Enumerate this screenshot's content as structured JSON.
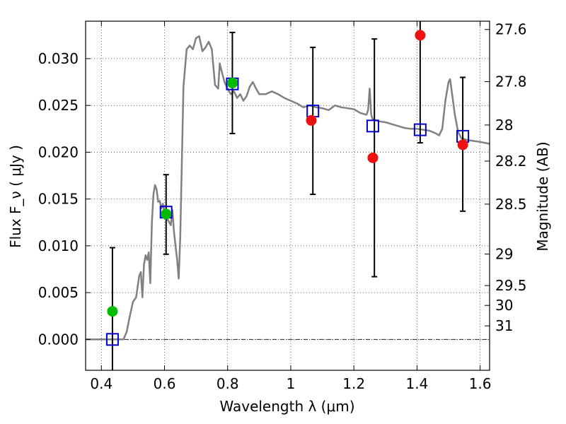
{
  "chart_data": {
    "type": "scatter",
    "title": "",
    "xlabel": "Wavelength  λ (μm)",
    "ylabel_left": "Flux  F_ν  ( μJy )",
    "ylabel_right": "Magnitude (AB)",
    "xlim": [
      0.35,
      1.63
    ],
    "ylim": [
      -0.0033,
      0.034
    ],
    "grid": true,
    "legend": "none",
    "x_ticks": [
      0.4,
      0.6,
      0.8,
      1.0,
      1.2,
      1.4,
      1.6
    ],
    "x_tick_labels": [
      "0.4",
      "0.6",
      "0.8",
      "1",
      "1.2",
      "1.4",
      "1.6"
    ],
    "y_ticks": [
      0.0,
      0.005,
      0.01,
      0.015,
      0.02,
      0.025,
      0.03
    ],
    "y_tick_labels": [
      "0.000",
      "0.005",
      "0.010",
      "0.015",
      "0.020",
      "0.025",
      "0.030"
    ],
    "mag_ticks": [
      "27.6",
      "27.8",
      "28",
      "28.2",
      "28.5",
      "29",
      "29.5",
      "30",
      "31"
    ],
    "colors": {
      "spectrum": "#808080",
      "detection": "#00bb00",
      "nondetection": "#ee1111",
      "model_box": "#0000cc",
      "errorbar": "#000000"
    },
    "spectrum": [
      [
        0.35,
        0.0
      ],
      [
        0.47,
        0.0
      ],
      [
        0.48,
        0.0008
      ],
      [
        0.49,
        0.0025
      ],
      [
        0.5,
        0.004
      ],
      [
        0.51,
        0.0045
      ],
      [
        0.52,
        0.0068
      ],
      [
        0.525,
        0.0072
      ],
      [
        0.53,
        0.0045
      ],
      [
        0.535,
        0.008
      ],
      [
        0.54,
        0.009
      ],
      [
        0.545,
        0.0085
      ],
      [
        0.55,
        0.0093
      ],
      [
        0.555,
        0.006
      ],
      [
        0.56,
        0.0125
      ],
      [
        0.565,
        0.0155
      ],
      [
        0.57,
        0.0165
      ],
      [
        0.575,
        0.016
      ],
      [
        0.58,
        0.0147
      ],
      [
        0.585,
        0.0148
      ],
      [
        0.59,
        0.014
      ],
      [
        0.595,
        0.0145
      ],
      [
        0.6,
        0.0135
      ],
      [
        0.605,
        0.0132
      ],
      [
        0.61,
        0.0128
      ],
      [
        0.615,
        0.0125
      ],
      [
        0.62,
        0.0122
      ],
      [
        0.625,
        0.0138
      ],
      [
        0.63,
        0.0115
      ],
      [
        0.635,
        0.01
      ],
      [
        0.64,
        0.0085
      ],
      [
        0.645,
        0.0065
      ],
      [
        0.65,
        0.011
      ],
      [
        0.66,
        0.027
      ],
      [
        0.67,
        0.031
      ],
      [
        0.68,
        0.0314
      ],
      [
        0.69,
        0.031
      ],
      [
        0.7,
        0.0322
      ],
      [
        0.71,
        0.0324
      ],
      [
        0.72,
        0.0308
      ],
      [
        0.73,
        0.0312
      ],
      [
        0.74,
        0.0318
      ],
      [
        0.75,
        0.031
      ],
      [
        0.76,
        0.0272
      ],
      [
        0.77,
        0.0268
      ],
      [
        0.775,
        0.0295
      ],
      [
        0.78,
        0.0288
      ],
      [
        0.79,
        0.0275
      ],
      [
        0.8,
        0.0268
      ],
      [
        0.81,
        0.0262
      ],
      [
        0.82,
        0.0265
      ],
      [
        0.83,
        0.0258
      ],
      [
        0.84,
        0.0262
      ],
      [
        0.85,
        0.0255
      ],
      [
        0.86,
        0.026
      ],
      [
        0.87,
        0.027
      ],
      [
        0.88,
        0.0275
      ],
      [
        0.89,
        0.0268
      ],
      [
        0.9,
        0.0262
      ],
      [
        0.92,
        0.0262
      ],
      [
        0.94,
        0.0265
      ],
      [
        0.96,
        0.0262
      ],
      [
        0.98,
        0.0258
      ],
      [
        1.0,
        0.0255
      ],
      [
        1.02,
        0.0252
      ],
      [
        1.04,
        0.0248
      ],
      [
        1.06,
        0.025
      ],
      [
        1.08,
        0.0248
      ],
      [
        1.1,
        0.0247
      ],
      [
        1.12,
        0.0245
      ],
      [
        1.14,
        0.025
      ],
      [
        1.16,
        0.0248
      ],
      [
        1.18,
        0.0247
      ],
      [
        1.2,
        0.0246
      ],
      [
        1.22,
        0.0242
      ],
      [
        1.24,
        0.024
      ],
      [
        1.245,
        0.0245
      ],
      [
        1.25,
        0.0268
      ],
      [
        1.255,
        0.024
      ],
      [
        1.26,
        0.0235
      ],
      [
        1.28,
        0.0233
      ],
      [
        1.3,
        0.0232
      ],
      [
        1.32,
        0.023
      ],
      [
        1.34,
        0.0228
      ],
      [
        1.36,
        0.0226
      ],
      [
        1.38,
        0.0225
      ],
      [
        1.4,
        0.0225
      ],
      [
        1.42,
        0.0224
      ],
      [
        1.44,
        0.0223
      ],
      [
        1.46,
        0.022
      ],
      [
        1.47,
        0.0218
      ],
      [
        1.48,
        0.0225
      ],
      [
        1.49,
        0.0255
      ],
      [
        1.5,
        0.0275
      ],
      [
        1.505,
        0.0278
      ],
      [
        1.51,
        0.0265
      ],
      [
        1.52,
        0.024
      ],
      [
        1.53,
        0.0222
      ],
      [
        1.54,
        0.0215
      ],
      [
        1.56,
        0.0213
      ],
      [
        1.58,
        0.0212
      ],
      [
        1.6,
        0.0211
      ],
      [
        1.63,
        0.0209
      ]
    ],
    "detections": [
      {
        "x": 0.435,
        "y": 0.003
      },
      {
        "x": 0.605,
        "y": 0.0134
      },
      {
        "x": 0.815,
        "y": 0.0274
      }
    ],
    "nondetections": [
      {
        "x": 1.065,
        "y": 0.0234
      },
      {
        "x": 1.26,
        "y": 0.0194
      },
      {
        "x": 1.41,
        "y": 0.0325
      },
      {
        "x": 1.545,
        "y": 0.0208
      }
    ],
    "model_points": [
      {
        "x": 0.435,
        "y": 0.0
      },
      {
        "x": 0.605,
        "y": 0.0136
      },
      {
        "x": 0.815,
        "y": 0.0273
      },
      {
        "x": 1.07,
        "y": 0.0244
      },
      {
        "x": 1.26,
        "y": 0.0228
      },
      {
        "x": 1.41,
        "y": 0.0224
      },
      {
        "x": 1.545,
        "y": 0.0217
      }
    ],
    "errorbars": [
      {
        "x": 0.435,
        "low": -0.0033,
        "high": 0.0098
      },
      {
        "x": 0.605,
        "low": 0.0091,
        "high": 0.0176
      },
      {
        "x": 0.815,
        "low": 0.022,
        "high": 0.0328
      },
      {
        "x": 1.07,
        "low": 0.0155,
        "high": 0.0312
      },
      {
        "x": 1.265,
        "low": 0.0067,
        "high": 0.0321
      },
      {
        "x": 1.41,
        "low": 0.021,
        "high": 0.034
      },
      {
        "x": 1.545,
        "low": 0.0137,
        "high": 0.028
      }
    ]
  }
}
